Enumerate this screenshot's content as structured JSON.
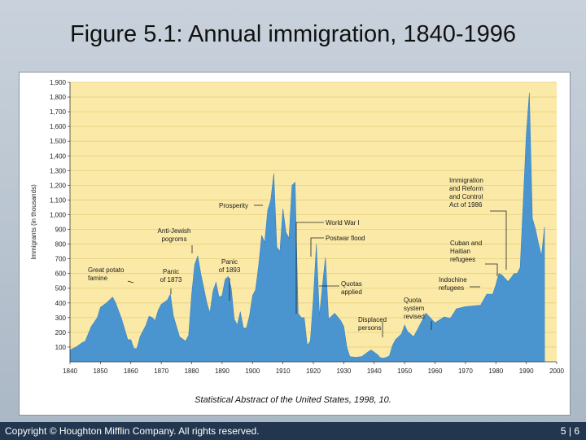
{
  "slide": {
    "title": "Figure 5.1: Annual immigration, 1840-1996",
    "source": "Statistical Abstract of the United States, 1998, 10.",
    "copyright": "Copyright © Houghton Mifflin Company. All rights reserved.",
    "page": "5 | 6"
  },
  "colors": {
    "background": "#fbe9a7",
    "area": "#4a95d0",
    "footer": "#22364f"
  },
  "chart_data": {
    "type": "area",
    "title": "Figure 5.1: Annual immigration, 1840-1996",
    "xlabel": "",
    "ylabel": "Immigrants (in thousands)",
    "xlim": [
      1840,
      2000
    ],
    "ylim": [
      0,
      1900
    ],
    "x_ticks": [
      1840,
      1850,
      1860,
      1870,
      1880,
      1890,
      1900,
      1910,
      1920,
      1930,
      1940,
      1950,
      1960,
      1970,
      1980,
      1990,
      2000
    ],
    "y_ticks": [
      100,
      200,
      300,
      400,
      500,
      600,
      700,
      800,
      900,
      1000,
      1100,
      1200,
      1300,
      1400,
      1500,
      1600,
      1700,
      1800,
      1900
    ],
    "x_tick_labels": [
      "1840",
      "1850",
      "1860",
      "1870",
      "1880",
      "1890",
      "1900",
      "1910",
      "1920",
      "1930",
      "1940",
      "1950",
      "1960",
      "1970",
      "1980",
      "1990",
      "2000"
    ],
    "y_tick_labels": [
      "100",
      "200",
      "300",
      "400",
      "500",
      "600",
      "700",
      "800",
      "900",
      "1,000",
      "1,100",
      "1,200",
      "1,300",
      "1,400",
      "1,500",
      "1,600",
      "1,700",
      "1,800",
      "1,900"
    ],
    "series": [
      {
        "name": "Annual immigration",
        "points": [
          [
            1840,
            80
          ],
          [
            1842,
            100
          ],
          [
            1844,
            130
          ],
          [
            1845,
            140
          ],
          [
            1847,
            240
          ],
          [
            1849,
            300
          ],
          [
            1850,
            370
          ],
          [
            1852,
            400
          ],
          [
            1854,
            440
          ],
          [
            1855,
            400
          ],
          [
            1857,
            290
          ],
          [
            1859,
            150
          ],
          [
            1860,
            150
          ],
          [
            1861,
            90
          ],
          [
            1862,
            90
          ],
          [
            1863,
            170
          ],
          [
            1865,
            250
          ],
          [
            1866,
            310
          ],
          [
            1867,
            300
          ],
          [
            1868,
            280
          ],
          [
            1869,
            350
          ],
          [
            1870,
            390
          ],
          [
            1872,
            420
          ],
          [
            1873,
            460
          ],
          [
            1874,
            310
          ],
          [
            1876,
            170
          ],
          [
            1878,
            140
          ],
          [
            1879,
            180
          ],
          [
            1880,
            460
          ],
          [
            1881,
            660
          ],
          [
            1882,
            720
          ],
          [
            1883,
            600
          ],
          [
            1885,
            400
          ],
          [
            1886,
            330
          ],
          [
            1887,
            480
          ],
          [
            1888,
            540
          ],
          [
            1889,
            440
          ],
          [
            1890,
            450
          ],
          [
            1891,
            560
          ],
          [
            1892,
            580
          ],
          [
            1893,
            500
          ],
          [
            1894,
            290
          ],
          [
            1895,
            250
          ],
          [
            1896,
            340
          ],
          [
            1897,
            230
          ],
          [
            1898,
            230
          ],
          [
            1899,
            310
          ],
          [
            1900,
            450
          ],
          [
            1901,
            490
          ],
          [
            1902,
            650
          ],
          [
            1903,
            860
          ],
          [
            1904,
            810
          ],
          [
            1905,
            1030
          ],
          [
            1906,
            1100
          ],
          [
            1907,
            1280
          ],
          [
            1908,
            780
          ],
          [
            1909,
            750
          ],
          [
            1910,
            1040
          ],
          [
            1911,
            880
          ],
          [
            1912,
            840
          ],
          [
            1913,
            1200
          ],
          [
            1914,
            1220
          ],
          [
            1915,
            330
          ],
          [
            1916,
            300
          ],
          [
            1917,
            300
          ],
          [
            1918,
            110
          ],
          [
            1919,
            140
          ],
          [
            1920,
            430
          ],
          [
            1921,
            800
          ],
          [
            1922,
            310
          ],
          [
            1923,
            520
          ],
          [
            1924,
            710
          ],
          [
            1925,
            290
          ],
          [
            1927,
            330
          ],
          [
            1929,
            280
          ],
          [
            1930,
            240
          ],
          [
            1931,
            100
          ],
          [
            1932,
            35
          ],
          [
            1934,
            30
          ],
          [
            1936,
            36
          ],
          [
            1938,
            68
          ],
          [
            1939,
            80
          ],
          [
            1941,
            50
          ],
          [
            1942,
            28
          ],
          [
            1943,
            24
          ],
          [
            1944,
            30
          ],
          [
            1945,
            40
          ],
          [
            1946,
            110
          ],
          [
            1947,
            150
          ],
          [
            1949,
            190
          ],
          [
            1950,
            250
          ],
          [
            1951,
            205
          ],
          [
            1953,
            170
          ],
          [
            1954,
            210
          ],
          [
            1957,
            330
          ],
          [
            1960,
            265
          ],
          [
            1963,
            305
          ],
          [
            1965,
            295
          ],
          [
            1966,
            325
          ],
          [
            1967,
            360
          ],
          [
            1970,
            375
          ],
          [
            1975,
            385
          ],
          [
            1977,
            460
          ],
          [
            1979,
            460
          ],
          [
            1980,
            525
          ],
          [
            1981,
            600
          ],
          [
            1982,
            590
          ],
          [
            1984,
            545
          ],
          [
            1985,
            570
          ],
          [
            1986,
            600
          ],
          [
            1987,
            600
          ],
          [
            1988,
            640
          ],
          [
            1989,
            1090
          ],
          [
            1990,
            1540
          ],
          [
            1991,
            1830
          ],
          [
            1992,
            975
          ],
          [
            1993,
            905
          ],
          [
            1994,
            805
          ],
          [
            1995,
            720
          ],
          [
            1996,
            916
          ]
        ]
      }
    ],
    "annotations": [
      {
        "label": "Great potato famine",
        "lines": [
          "Great potato",
          "famine"
        ],
        "x": 1855,
        "y": 440
      },
      {
        "label": "Panic of 1873",
        "lines": [
          "Panic",
          "of 1873"
        ],
        "x": 1873,
        "y": 460
      },
      {
        "label": "Anti-Jewish pogroms",
        "lines": [
          "Anti-Jewish",
          "pogroms"
        ],
        "x": 1882,
        "y": 720
      },
      {
        "label": "Panic of 1893",
        "lines": [
          "Panic",
          "of 1893"
        ],
        "x": 1893,
        "y": 500
      },
      {
        "label": "Prosperity",
        "lines": [
          "Prosperity"
        ],
        "x": 1907,
        "y": 1280
      },
      {
        "label": "World War I",
        "lines": [
          "World War I"
        ],
        "x": 1915,
        "y": 1000
      },
      {
        "label": "Postwar flood",
        "lines": [
          "Postwar flood"
        ],
        "x": 1921,
        "y": 800
      },
      {
        "label": "Quotas applied",
        "lines": [
          "Quotas",
          "applied"
        ],
        "x": 1924,
        "y": 710
      },
      {
        "label": "Displaced persons",
        "lines": [
          "Displaced",
          "persons"
        ],
        "x": 1948,
        "y": 170
      },
      {
        "label": "Quota system revised",
        "lines": [
          "Quota",
          "system",
          "revised"
        ],
        "x": 1965,
        "y": 295
      },
      {
        "label": "Indochine refugees",
        "lines": [
          "Indochine",
          "refugees"
        ],
        "x": 1980,
        "y": 530
      },
      {
        "label": "Cuban and Haitian refugees",
        "lines": [
          "Cuban and",
          "Haitian",
          "refugees"
        ],
        "x": 1980,
        "y": 600
      },
      {
        "label": "Immigration and Reform and Control Act of 1986",
        "lines": [
          "Immigration",
          "and Reform",
          "and Control",
          "Act of 1986"
        ],
        "x": 1987,
        "y": 620
      }
    ]
  }
}
